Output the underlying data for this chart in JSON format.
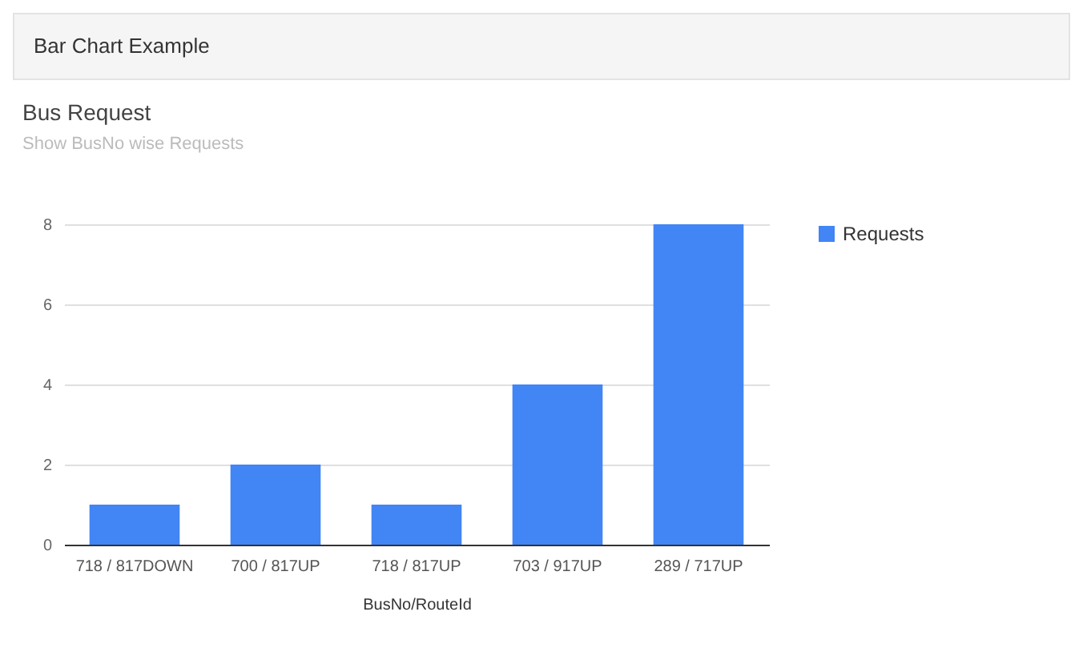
{
  "chart_data": {
    "type": "bar",
    "title": "Bus Request",
    "subtitle": "Show BusNo wise Requests",
    "xlabel": "BusNo/RouteId",
    "annotations": [
      "Bar Chart Example"
    ],
    "categories": [
      "718 / 817DOWN",
      "700 / 817UP",
      "718 / 817UP",
      "703 / 917UP",
      "289 / 717UP"
    ],
    "series": [
      {
        "name": "Requests",
        "color": "#4285f4",
        "values": [
          1,
          2,
          1,
          4,
          8
        ]
      }
    ],
    "ylim": [
      0,
      8
    ],
    "yticks": [
      0,
      2,
      4,
      6,
      8
    ],
    "grid": "y",
    "legend": "right"
  }
}
